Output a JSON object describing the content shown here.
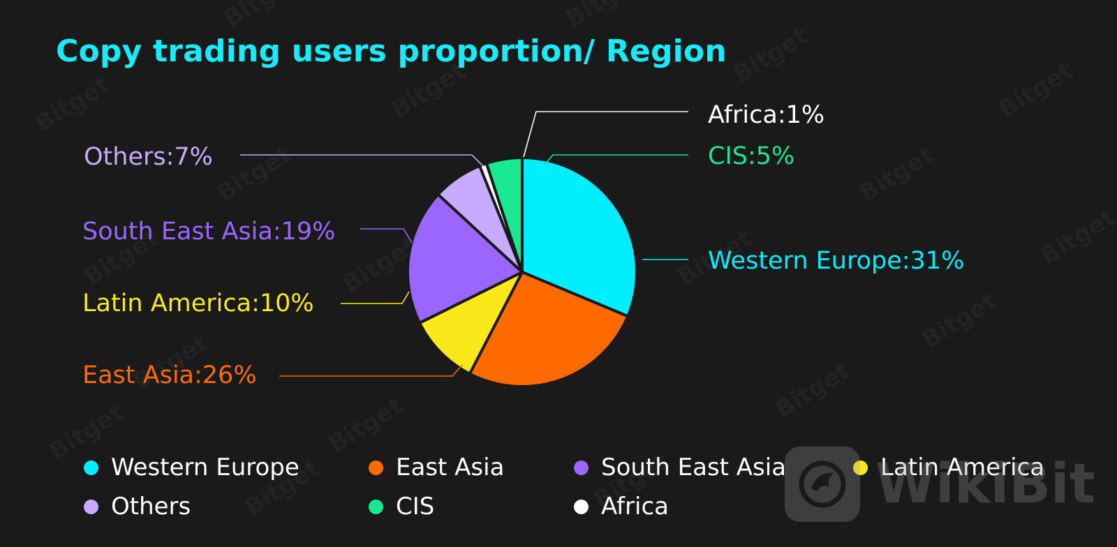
{
  "chart_data": {
    "type": "pie",
    "title": "Copy trading users proportion/ Region",
    "title_color": "#18eaf8",
    "slices": [
      {
        "name": "Western Europe",
        "value": 31,
        "label": "Western Europe:31%",
        "color": "#00eeff"
      },
      {
        "name": "East Asia",
        "value": 26,
        "label": "East Asia:26%",
        "color": "#ff6a00"
      },
      {
        "name": "Latin America",
        "value": 10,
        "label": "Latin America:10%",
        "color": "#fbe81a"
      },
      {
        "name": "South East Asia",
        "value": 19,
        "label": "South East Asia:19%",
        "color": "#9a66ff"
      },
      {
        "name": "Others",
        "value": 7,
        "label": "Others:7%",
        "color": "#c8aaff"
      },
      {
        "name": "Africa",
        "value": 1,
        "label": "Africa:1%",
        "color": "#ffffff"
      },
      {
        "name": "CIS",
        "value": 5,
        "label": "CIS:5%",
        "color": "#18e892"
      }
    ],
    "legend_placement": "bottom",
    "legend_rows": [
      [
        "Western Europe",
        "East Asia",
        "South East Asia",
        "Latin America"
      ],
      [
        "Others",
        "CIS",
        "Africa"
      ]
    ]
  },
  "watermark": {
    "brand": "WikiBit",
    "tile": "Bitget",
    "logo_icon": "eagle-icon"
  }
}
